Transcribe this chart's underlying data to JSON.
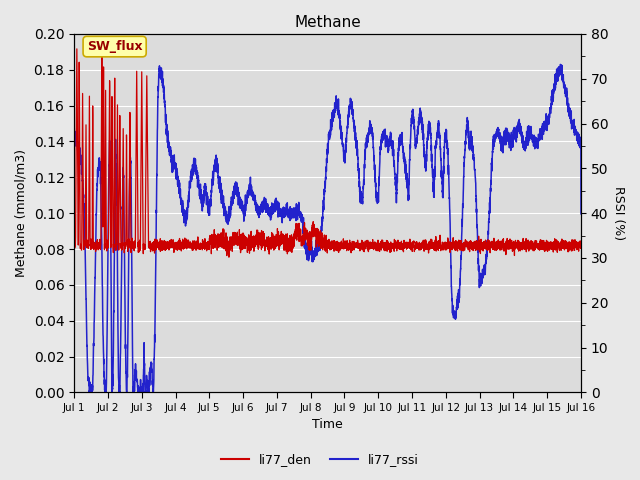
{
  "title": "Methane",
  "ylabel_left": "Methane (mmol/m3)",
  "ylabel_right": "RSSI (%)",
  "xlabel": "Time",
  "annotation": "SW_flux",
  "ylim_left": [
    0.0,
    0.2
  ],
  "ylim_right": [
    0,
    80
  ],
  "xtick_labels": [
    "Jul 1",
    "Jul 2",
    "Jul 3",
    "Jul 4",
    "Jul 5",
    "Jul 6",
    "Jul 7",
    "Jul 8",
    "Jul 9",
    "Jul 10",
    "Jul 11",
    "Jul 12",
    "Jul 13",
    "Jul 14",
    "Jul 15",
    "Jul 16"
  ],
  "color_den": "#cc0000",
  "color_rssi": "#2222cc",
  "legend_den": "li77_den",
  "legend_rssi": "li77_rssi",
  "bg_color": "#e8e8e8",
  "plot_bg_color": "#dcdcdc",
  "annotation_bg": "#ffffaa",
  "annotation_border": "#ccaa00",
  "annotation_text_color": "#990000",
  "grid_color": "#ffffff",
  "linewidth_den": 0.9,
  "linewidth_rssi": 1.1
}
